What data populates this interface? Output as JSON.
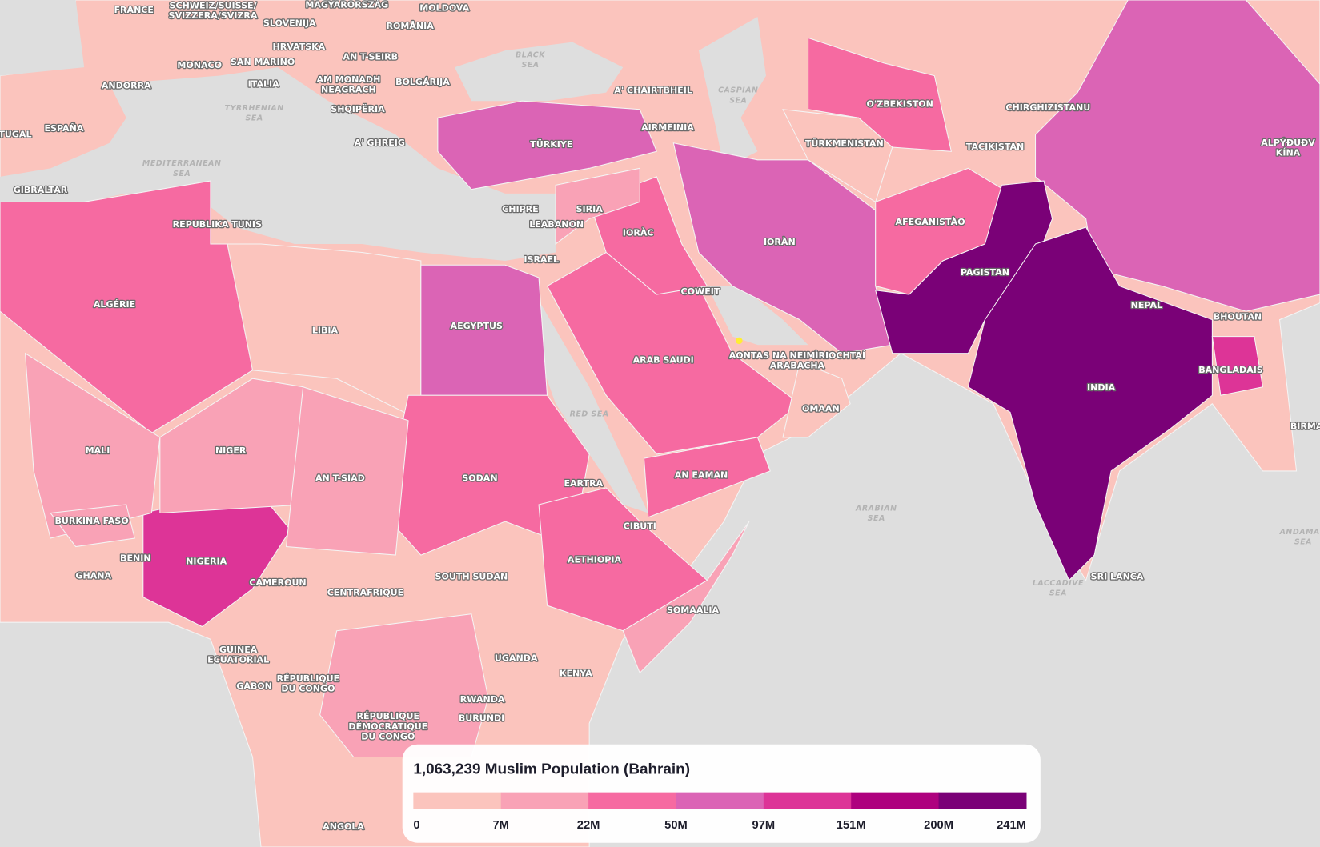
{
  "legend": {
    "title": "1,063,239 Muslim Population (Bahrain)",
    "ticks": [
      "0",
      "7M",
      "22M",
      "50M",
      "97M",
      "151M",
      "200M",
      "241M"
    ],
    "colors": [
      "#fbc4bd",
      "#f9a2b6",
      "#f66aa1",
      "#db64b5",
      "#dd3497",
      "#ae017e",
      "#7a0177"
    ]
  },
  "countries": [
    {
      "lines": [
        "ALGÉRIE"
      ],
      "color": "#f66aa1"
    },
    {
      "lines": [
        "LIBIA"
      ],
      "color": "#fbc4bd"
    },
    {
      "lines": [
        "AEGYPTUS"
      ],
      "color": "#db64b5"
    },
    {
      "lines": [
        "SODAN"
      ],
      "color": "#f66aa1"
    },
    {
      "lines": [
        "AETHIOPIA"
      ],
      "color": "#f66aa1"
    },
    {
      "lines": [
        "NIGERIA"
      ],
      "color": "#dd3497"
    },
    {
      "lines": [
        "NIGER"
      ],
      "color": "#f9a2b6"
    },
    {
      "lines": [
        "MALI"
      ],
      "color": "#f9a2b6"
    },
    {
      "lines": [
        "AN T-SIAD"
      ],
      "color": "#f9a2b6"
    },
    {
      "lines": [
        "TÜRKIYE"
      ],
      "color": "#db64b5"
    },
    {
      "lines": [
        "ARAB SAUDI"
      ],
      "color": "#f66aa1"
    },
    {
      "lines": [
        "AN EAMAN"
      ],
      "color": "#f66aa1"
    },
    {
      "lines": [
        "IORÀC"
      ],
      "color": "#f66aa1"
    },
    {
      "lines": [
        "SIRIA"
      ],
      "color": "#f9a2b6"
    },
    {
      "lines": [
        "IORÀN"
      ],
      "color": "#db64b5"
    },
    {
      "lines": [
        "AFEGANISTÀO"
      ],
      "color": "#f66aa1"
    },
    {
      "lines": [
        "O'ZBEKISTON"
      ],
      "color": "#f66aa1"
    },
    {
      "lines": [
        "TÜRKMENISTAN"
      ],
      "color": "#fbc4bd"
    },
    {
      "lines": [
        "ALPÝÐUÐV",
        "KÍNA"
      ],
      "color": "#db64b5"
    },
    {
      "lines": [
        "PAGISTAN"
      ],
      "color": "#7a0177"
    },
    {
      "lines": [
        "INDIA"
      ],
      "color": "#7a0177"
    },
    {
      "lines": [
        "BANGLADAIS"
      ],
      "color": "#dd3497"
    },
    {
      "lines": [
        "OMAAN"
      ],
      "color": "#fbc4bd"
    },
    {
      "lines": [
        "SOMAALIA"
      ],
      "color": "#f9a2b6"
    },
    {
      "lines": [
        "RÉPUBLIQUE",
        "DÉMOCRATIQUE",
        "DU CONGO"
      ],
      "color": "#f9a2b6"
    },
    {
      "lines": [
        "BURKINA FASO"
      ],
      "color": "#f9a2b6"
    }
  ],
  "places": [
    [
      "FRANCE"
    ],
    [
      "SCHWEIZ/SUISSE/",
      "SVIZZERA/SVIZRA"
    ],
    [
      "MAGYARORSZÁG"
    ],
    [
      "MOLDOVA"
    ],
    [
      "SLOVENIJA"
    ],
    [
      "ROMÂNIA"
    ],
    [
      "HRVATSKA"
    ],
    [
      "AN T-SEIRB"
    ],
    [
      "MONACO"
    ],
    [
      "SAN MARINO"
    ],
    [
      "ANDORRA"
    ],
    [
      "ITALIA"
    ],
    [
      "AM MONADH",
      "NEAGRACH"
    ],
    [
      "BOLGÁRIJA"
    ],
    [
      "SHQIPËRIA"
    ],
    [
      "A' CHAIRTBHEIL"
    ],
    [
      "CHIRGHIZISTANU"
    ],
    [
      "TUGAL"
    ],
    [
      "ESPAÑA"
    ],
    [
      "A' GHREIG"
    ],
    [
      "AIRMEINIA"
    ],
    [
      "TACIKISTAN"
    ],
    [
      "GIBRALTAR"
    ],
    [
      "REPUBLIKA TUNIS"
    ],
    [
      "CHIPRE"
    ],
    [
      "LEABANON"
    ],
    [
      "ISRAEL"
    ],
    [
      "COWEIT"
    ],
    [
      "NEPAL"
    ],
    [
      "BHOUTAN"
    ],
    [
      "AONTAS NA NEIMÌRIOCHTAÍ",
      "ARABACHA"
    ],
    [
      "BIRMA"
    ],
    [
      "EARTRA"
    ],
    [
      "CIBUTI"
    ],
    [
      "BENIN"
    ],
    [
      "GHANA"
    ],
    [
      "CAMEROUN"
    ],
    [
      "SOUTH SUDAN"
    ],
    [
      "SRI LANCA"
    ],
    [
      "CENTRAFRIQUE"
    ],
    [
      "GUINEA",
      "ECUATORIAL"
    ],
    [
      "UGANDA"
    ],
    [
      "KENYA"
    ],
    [
      "RÉPUBLIQUE",
      "DU CONGO"
    ],
    [
      "GABON"
    ],
    [
      "RWANDA"
    ],
    [
      "BURUNDI"
    ],
    [
      "ANGOLA"
    ]
  ],
  "seas": [
    [
      "BLACK",
      "SEA"
    ],
    [
      "CASPIAN",
      "SEA"
    ],
    [
      "TYRRHENIAN",
      "SEA"
    ],
    [
      "MEDITERRANEAN",
      "SEA"
    ],
    [
      "RED SEA"
    ],
    [
      "ARABIAN",
      "SEA"
    ],
    [
      "LACCADIVE",
      "SEA"
    ],
    [
      "ANDAMAN",
      "SEA"
    ]
  ]
}
